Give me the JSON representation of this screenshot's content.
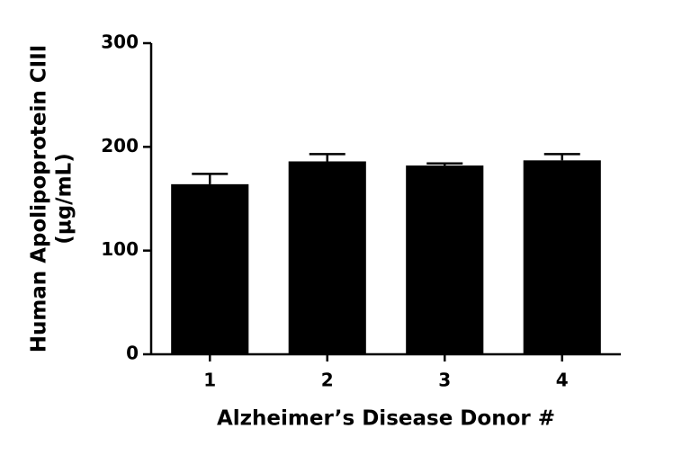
{
  "chart_data": {
    "type": "bar",
    "xlabel": "Alzheimer’s Disease Donor #",
    "ylabel": [
      "Human Apolipoprotein CIII",
      "(µg/mL)"
    ],
    "categories": [
      "1",
      "2",
      "3",
      "4"
    ],
    "values": [
      164,
      186,
      182,
      187
    ],
    "errors": [
      10,
      7,
      2,
      6
    ],
    "color": "#000000",
    "ylim": [
      0,
      300
    ],
    "yticks": [
      0,
      100,
      200,
      300
    ],
    "grid": false
  }
}
